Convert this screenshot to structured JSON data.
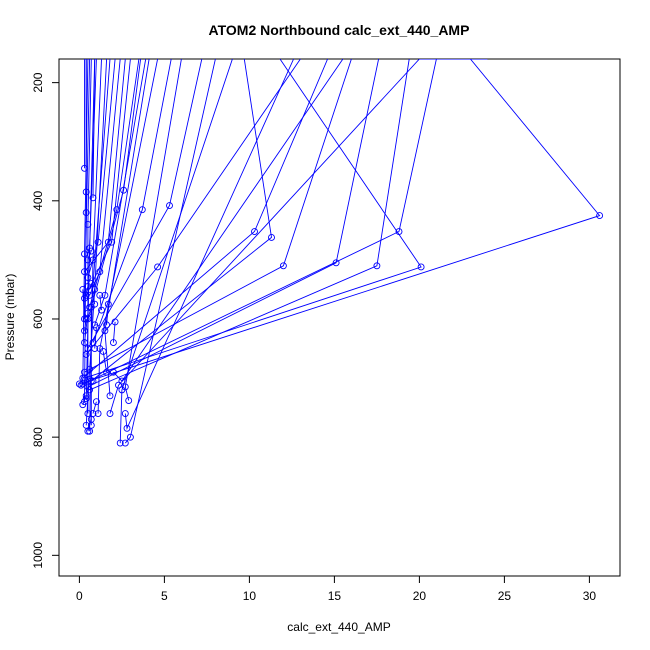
{
  "chart_data": {
    "type": "scatter",
    "title": "ATOM2 Northbound calc_ext_440_AMP",
    "xlabel": "calc_ext_440_AMP",
    "ylabel": "Pressure (mbar)",
    "xlim": [
      -1.2,
      31.8
    ],
    "ylim": [
      1035,
      160
    ],
    "y_reversed": true,
    "x_ticks": [
      0,
      5,
      10,
      15,
      20,
      25,
      30
    ],
    "x_tick_labels": [
      "0",
      "5",
      "10",
      "15",
      "20",
      "25",
      "30"
    ],
    "y_ticks": [
      200,
      400,
      600,
      800,
      1000
    ],
    "y_tick_labels": [
      "200",
      "400",
      "600",
      "800",
      "1000"
    ],
    "grid": false,
    "color": "#0000ff",
    "marker": "open-circle",
    "connected_lines": true,
    "series": [
      {
        "x": [
          0.0,
          30.6,
          23.0
        ],
        "y": [
          710,
          425,
          160
        ]
      },
      {
        "x": [
          0.3,
          20.1,
          11.8
        ],
        "y": [
          700,
          512,
          160
        ]
      },
      {
        "x": [
          0.1,
          18.8,
          21.0
        ],
        "y": [
          712,
          452,
          160
        ]
      },
      {
        "x": [
          0.6,
          17.5,
          19.4
        ],
        "y": [
          720,
          510,
          160
        ]
      },
      {
        "x": [
          0.5,
          15.1,
          17.6
        ],
        "y": [
          715,
          505,
          160
        ]
      },
      {
        "x": [
          0.3,
          12.0,
          16.0
        ],
        "y": [
          690,
          510,
          160
        ]
      },
      {
        "x": [
          0.7,
          11.3,
          9.7
        ],
        "y": [
          705,
          462,
          160
        ]
      },
      {
        "x": [
          0.2,
          10.3,
          14.6
        ],
        "y": [
          700,
          452,
          160
        ]
      },
      {
        "x": [
          0.5,
          5.3,
          7.2
        ],
        "y": [
          650,
          408,
          160
        ]
      },
      {
        "x": [
          0.4,
          4.6,
          13.0
        ],
        "y": [
          660,
          512,
          160
        ]
      },
      {
        "x": [
          0.8,
          3.7,
          5.4
        ],
        "y": [
          640,
          415,
          160
        ]
      },
      {
        "x": [
          0.5,
          2.6,
          3.6
        ],
        "y": [
          600,
          382,
          160
        ]
      },
      {
        "x": [
          0.6,
          2.2,
          3.5
        ],
        "y": [
          580,
          415,
          160
        ]
      },
      {
        "x": [
          0.4,
          1.9,
          3.0
        ],
        "y": [
          560,
          470,
          160
        ]
      },
      {
        "x": [
          0.3,
          1.7,
          2.7
        ],
        "y": [
          520,
          470,
          160
        ]
      },
      {
        "x": [
          0.9,
          1.5,
          3.9
        ],
        "y": [
          610,
          560,
          160
        ]
      },
      {
        "x": [
          0.5,
          1.1,
          2.1
        ],
        "y": [
          530,
          470,
          160
        ]
      },
      {
        "x": [
          0.6,
          1.2,
          2.4
        ],
        "y": [
          560,
          520,
          160
        ]
      },
      {
        "x": [
          0.3,
          0.3
        ],
        "y": [
          345,
          160
        ]
      },
      {
        "x": [
          0.4,
          0.4
        ],
        "y": [
          385,
          160
        ]
      },
      {
        "x": [
          0.8,
          0.9
        ],
        "y": [
          395,
          160
        ]
      },
      {
        "x": [
          0.3,
          0.4,
          0.4
        ],
        "y": [
          740,
          420,
          160
        ]
      },
      {
        "x": [
          0.5,
          0.5,
          0.7
        ],
        "y": [
          760,
          440,
          160
        ]
      },
      {
        "x": [
          0.4,
          0.6,
          1.0
        ],
        "y": [
          735,
          480,
          160
        ]
      },
      {
        "x": [
          0.2,
          0.3,
          0.5
        ],
        "y": [
          710,
          490,
          160
        ]
      },
      {
        "x": [
          0.6,
          0.8,
          1.3
        ],
        "y": [
          790,
          500,
          160
        ]
      },
      {
        "x": [
          0.4,
          0.9,
          1.6
        ],
        "y": [
          780,
          550,
          160
        ]
      },
      {
        "x": [
          0.3,
          0.5,
          0.9
        ],
        "y": [
          640,
          590,
          160
        ]
      },
      {
        "x": [
          0.7,
          0.7,
          1.8
        ],
        "y": [
          780,
          580,
          160
        ]
      },
      {
        "x": [
          0.2,
          0.3,
          0.6
        ],
        "y": [
          550,
          600,
          160
        ]
      },
      {
        "x": [
          1.8,
          2.3,
          20.0,
          24.0
        ],
        "y": [
          760,
          712,
          160,
          160
        ]
      },
      {
        "x": [
          2.0,
          2.5,
          15.5
        ],
        "y": [
          690,
          705,
          160
        ]
      },
      {
        "x": [
          2.7,
          2.8,
          12.6
        ],
        "y": [
          760,
          785,
          160
        ]
      },
      {
        "x": [
          2.4,
          2.5,
          9.0
        ],
        "y": [
          810,
          720,
          160
        ]
      },
      {
        "x": [
          2.7,
          3.0,
          8.0
        ],
        "y": [
          810,
          800,
          160
        ]
      },
      {
        "x": [
          2.9,
          2.7,
          6.0
        ],
        "y": [
          738,
          715,
          160
        ]
      },
      {
        "x": [
          1.1,
          1.2,
          4.6
        ],
        "y": [
          760,
          650,
          160
        ]
      },
      {
        "x": [
          1.8,
          1.5,
          4.1
        ],
        "y": [
          730,
          620,
          160
        ]
      },
      {
        "x": [
          1.6,
          1.7
        ],
        "y": [
          610,
          575
        ]
      },
      {
        "x": [
          2.1,
          2.0
        ],
        "y": [
          605,
          640
        ]
      },
      {
        "x": [
          1.4,
          1.6
        ],
        "y": [
          655,
          690
        ]
      },
      {
        "x": [
          1.3,
          1.2
        ],
        "y": [
          585,
          560
        ]
      },
      {
        "x": [
          0.9,
          1.0
        ],
        "y": [
          650,
          615
        ]
      },
      {
        "x": [
          0.2,
          0.4
        ],
        "y": [
          745,
          730
        ]
      },
      {
        "x": [
          0.5,
          0.7
        ],
        "y": [
          790,
          770
        ]
      },
      {
        "x": [
          0.6,
          0.8
        ],
        "y": [
          685,
          705
        ]
      },
      {
        "x": [
          0.4,
          0.3
        ],
        "y": [
          600,
          620
        ]
      },
      {
        "x": [
          0.9,
          0.7
        ],
        "y": [
          575,
          540
        ]
      },
      {
        "x": [
          0.5,
          0.7
        ],
        "y": [
          500,
          485
        ]
      },
      {
        "x": [
          0.3,
          0.5
        ],
        "y": [
          565,
          545
        ]
      },
      {
        "x": [
          0.8,
          1.0
        ],
        "y": [
          760,
          740
        ]
      }
    ]
  }
}
